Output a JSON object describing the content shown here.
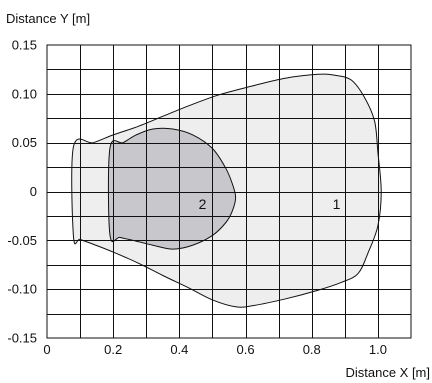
{
  "chart_data": {
    "type": "area",
    "xlabel": "Distance X [m]",
    "ylabel": "Distance Y [m]",
    "xlim": [
      0,
      1.1
    ],
    "ylim": [
      -0.15,
      0.15
    ],
    "x_ticks": [
      "0",
      "0.2",
      "0.4",
      "0.6",
      "0.8",
      "1.0"
    ],
    "x_tick_values": [
      0,
      0.2,
      0.4,
      0.6,
      0.8,
      1.0
    ],
    "y_ticks": [
      "0.15",
      "0.10",
      "0.05",
      "0",
      "-0.05",
      "-0.10",
      "-0.15"
    ],
    "y_tick_values": [
      0.15,
      0.1,
      0.05,
      0,
      -0.05,
      -0.1,
      -0.15
    ],
    "grid": true,
    "grid_x_step": 0.1,
    "grid_y_step": 0.025,
    "series": [
      {
        "name": "1",
        "color": "#eeeeee",
        "x": [
          0.08,
          0.14,
          0.2,
          0.27,
          0.35,
          0.43,
          0.52,
          0.62,
          0.72,
          0.82,
          0.87,
          0.92,
          0.96,
          0.99,
          1.0,
          1.01,
          1.0,
          0.97,
          0.94,
          0.89,
          0.82,
          0.72,
          0.62,
          0.57,
          0.5,
          0.43,
          0.35,
          0.28,
          0.2,
          0.14,
          0.1,
          0.08,
          0.08
        ],
        "y": [
          0.046,
          0.05,
          0.058,
          0.066,
          0.077,
          0.088,
          0.099,
          0.108,
          0.116,
          0.12,
          0.119,
          0.114,
          0.096,
          0.072,
          0.04,
          0.0,
          -0.035,
          -0.063,
          -0.084,
          -0.093,
          -0.101,
          -0.11,
          -0.117,
          -0.118,
          -0.111,
          -0.099,
          -0.086,
          -0.074,
          -0.062,
          -0.054,
          -0.049,
          -0.046,
          0.046
        ]
      },
      {
        "name": "2",
        "color": "#c8c8cc",
        "x": [
          0.19,
          0.23,
          0.27,
          0.32,
          0.38,
          0.44,
          0.5,
          0.54,
          0.56,
          0.57,
          0.56,
          0.54,
          0.5,
          0.44,
          0.38,
          0.32,
          0.26,
          0.22,
          0.19,
          0.19
        ],
        "y": [
          0.044,
          0.05,
          0.058,
          0.064,
          0.064,
          0.058,
          0.044,
          0.024,
          0.008,
          -0.006,
          -0.02,
          -0.032,
          -0.045,
          -0.055,
          -0.059,
          -0.055,
          -0.05,
          -0.047,
          -0.044,
          0.044
        ]
      }
    ],
    "zone_labels": [
      {
        "text": "1",
        "x": 0.875,
        "y": -0.018
      },
      {
        "text": "2",
        "x": 0.47,
        "y": -0.018
      }
    ]
  }
}
